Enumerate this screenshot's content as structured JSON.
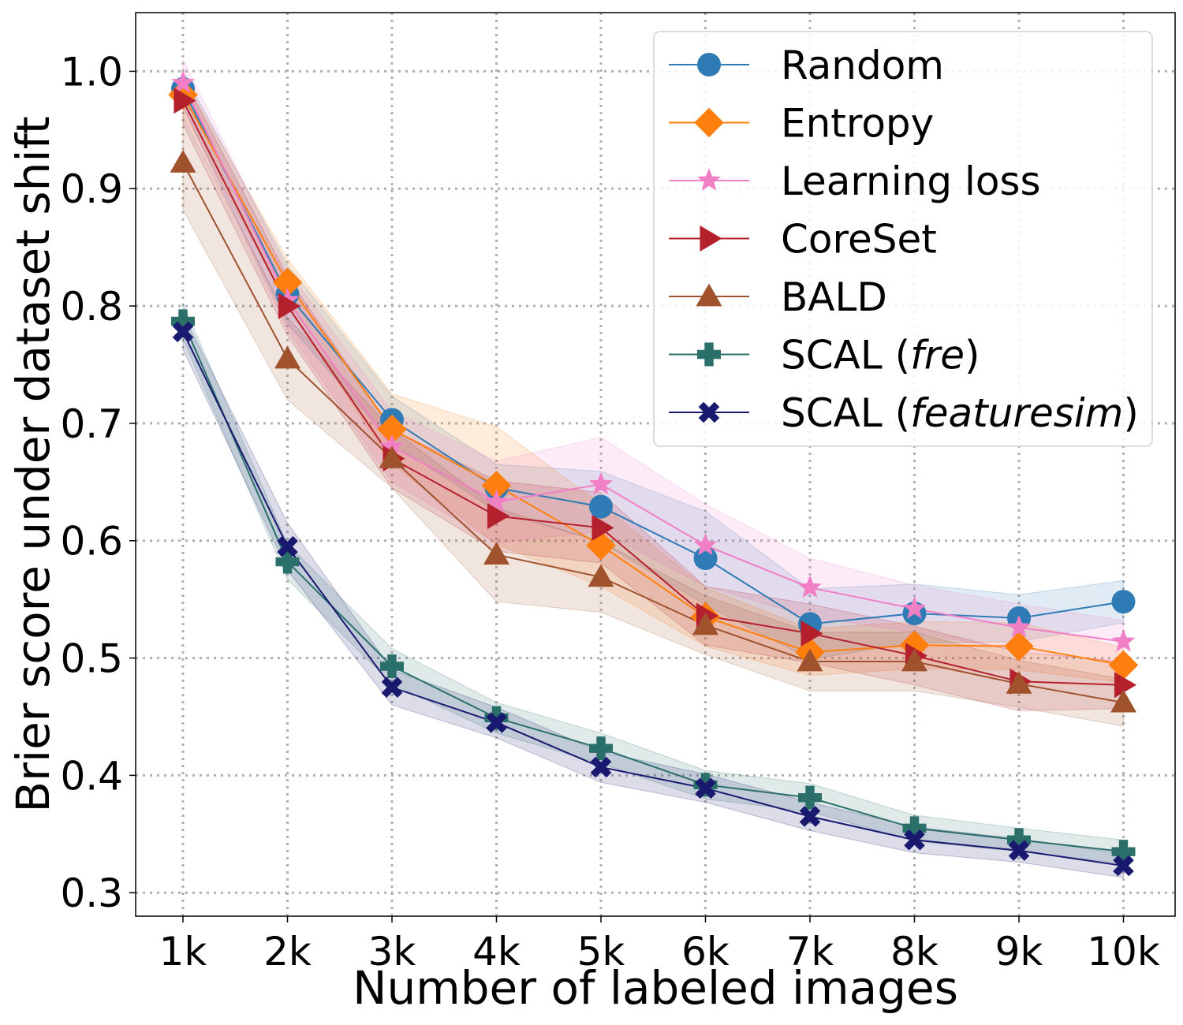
{
  "chart_data": {
    "type": "line",
    "title": "",
    "xlabel": "Number of labeled images",
    "ylabel": "Brier score under dataset shift",
    "categories": [
      "1k",
      "2k",
      "3k",
      "4k",
      "5k",
      "6k",
      "7k",
      "8k",
      "9k",
      "10k"
    ],
    "ylim": [
      0.28,
      1.05
    ],
    "yticks": [
      0.3,
      0.4,
      0.5,
      0.6,
      0.7,
      0.8,
      0.9,
      1.0
    ],
    "ytick_labels": [
      "0.3",
      "0.4",
      "0.5",
      "0.6",
      "0.7",
      "0.8",
      "0.9",
      "1.0"
    ],
    "grid": true,
    "legend_position": "top-right",
    "series": [
      {
        "name": "Random",
        "legend_parts": [
          {
            "text": "Random",
            "italic": false
          }
        ],
        "color": "#2f7bb5",
        "marker": "circle",
        "values": [
          0.985,
          0.81,
          0.703,
          0.645,
          0.629,
          0.585,
          0.529,
          0.538,
          0.534,
          0.548
        ],
        "band": [
          0.015,
          0.025,
          0.02,
          0.02,
          0.03,
          0.04,
          0.03,
          0.025,
          0.02,
          0.018
        ]
      },
      {
        "name": "Entropy",
        "legend_parts": [
          {
            "text": "Entropy",
            "italic": false
          }
        ],
        "color": "#ff7f0e",
        "marker": "diamond",
        "values": [
          0.98,
          0.82,
          0.695,
          0.647,
          0.596,
          0.535,
          0.505,
          0.511,
          0.51,
          0.494
        ],
        "band": [
          0.015,
          0.02,
          0.03,
          0.05,
          0.035,
          0.025,
          0.02,
          0.02,
          0.02,
          0.015
        ]
      },
      {
        "name": "Learning loss",
        "legend_parts": [
          {
            "text": "Learning loss",
            "italic": false
          }
        ],
        "color": "#f17fc6",
        "marker": "star",
        "values": [
          0.99,
          0.805,
          0.68,
          0.633,
          0.648,
          0.596,
          0.56,
          0.542,
          0.526,
          0.514
        ],
        "band": [
          0.02,
          0.025,
          0.03,
          0.035,
          0.04,
          0.035,
          0.025,
          0.02,
          0.02,
          0.018
        ]
      },
      {
        "name": "CoreSet",
        "legend_parts": [
          {
            "text": "CoreSet",
            "italic": false
          }
        ],
        "color": "#b5202d",
        "marker": "triangle-right",
        "values": [
          0.975,
          0.8,
          0.67,
          0.621,
          0.611,
          0.536,
          0.521,
          0.502,
          0.48,
          0.477
        ],
        "band": [
          0.02,
          0.025,
          0.025,
          0.03,
          0.03,
          0.025,
          0.025,
          0.025,
          0.025,
          0.02
        ]
      },
      {
        "name": "BALD",
        "legend_parts": [
          {
            "text": "BALD",
            "italic": false
          }
        ],
        "color": "#a0522d",
        "marker": "triangle-up",
        "values": [
          0.922,
          0.755,
          0.67,
          0.588,
          0.569,
          0.528,
          0.497,
          0.497,
          0.478,
          0.462
        ],
        "band": [
          0.04,
          0.035,
          0.025,
          0.04,
          0.03,
          0.025,
          0.025,
          0.025,
          0.02,
          0.02
        ]
      },
      {
        "name": "SCAL (fre)",
        "legend_parts": [
          {
            "text": "SCAL (",
            "italic": false
          },
          {
            "text": "fre",
            "italic": true
          },
          {
            "text": ")",
            "italic": false
          }
        ],
        "color": "#2b6f6a",
        "marker": "plus",
        "values": [
          0.787,
          0.582,
          0.493,
          0.449,
          0.423,
          0.392,
          0.381,
          0.355,
          0.345,
          0.335
        ],
        "band": [
          0.015,
          0.015,
          0.015,
          0.013,
          0.013,
          0.012,
          0.012,
          0.011,
          0.01,
          0.01
        ]
      },
      {
        "name": "SCAL (featuresim)",
        "legend_parts": [
          {
            "text": "SCAL (",
            "italic": false
          },
          {
            "text": "featuresim",
            "italic": true
          },
          {
            "text": ")",
            "italic": false
          }
        ],
        "color": "#191970",
        "marker": "x",
        "values": [
          0.778,
          0.595,
          0.475,
          0.445,
          0.407,
          0.389,
          0.365,
          0.345,
          0.336,
          0.323
        ],
        "band": [
          0.015,
          0.02,
          0.015,
          0.013,
          0.013,
          0.012,
          0.012,
          0.011,
          0.01,
          0.01
        ]
      }
    ]
  }
}
